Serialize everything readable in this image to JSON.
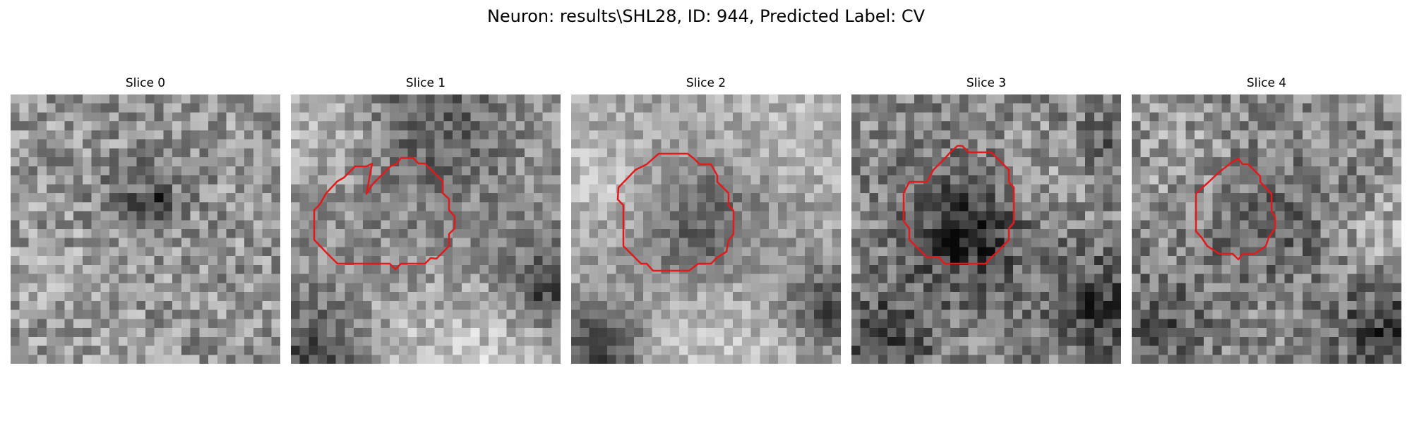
{
  "figure": {
    "title": "Neuron: results\\SHL28, ID: 944, Predicted Label: CV",
    "contour_color": "#e31a1c",
    "colormap": "gray"
  },
  "panels": [
    {
      "title": "Slice 0",
      "has_contour": false
    },
    {
      "title": "Slice 1",
      "has_contour": true
    },
    {
      "title": "Slice 2",
      "has_contour": true
    },
    {
      "title": "Slice 3",
      "has_contour": true
    },
    {
      "title": "Slice 4",
      "has_contour": true
    }
  ]
}
